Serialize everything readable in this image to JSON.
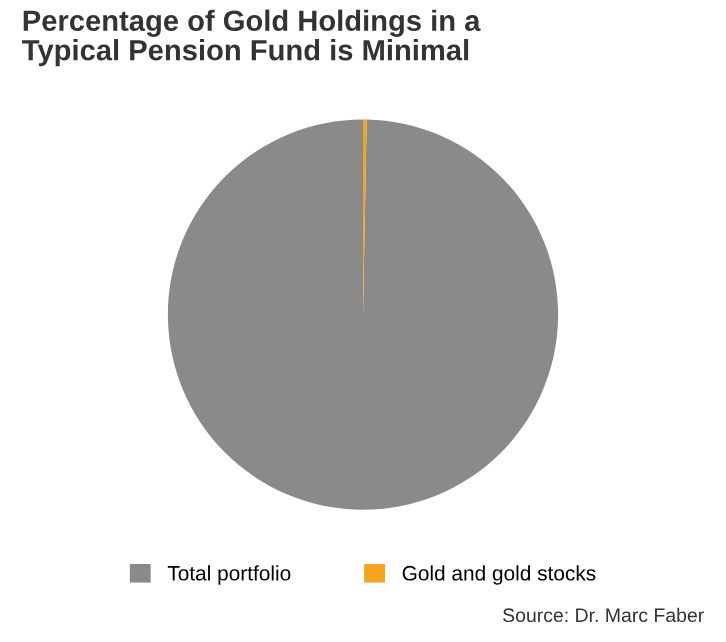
{
  "chart_data": {
    "type": "pie",
    "title": "Percentage of Gold Holdings in a\nTypical Pension Fund is Minimal",
    "categories": [
      "Total portfolio",
      "Gold and gold stocks"
    ],
    "values": [
      99.7,
      0.3
    ],
    "colors": [
      "#8a8a8a",
      "#f5a21c"
    ],
    "legend": "bottom",
    "annotations": [
      "Source: Dr. Marc Faber"
    ]
  }
}
